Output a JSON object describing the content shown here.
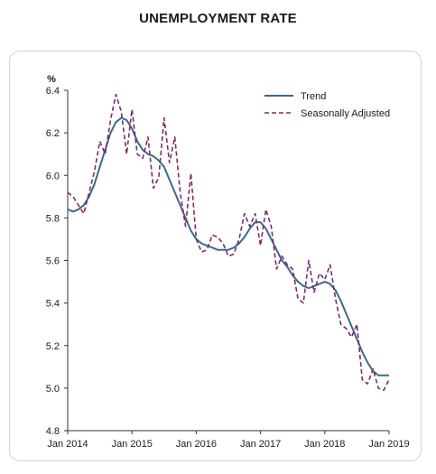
{
  "chart_data": {
    "type": "line",
    "title": "UNEMPLOYMENT RATE",
    "ylabel": "%",
    "xlabel": "",
    "ylim": [
      4.8,
      6.4
    ],
    "yticks": [
      "4.8",
      "5.0",
      "5.2",
      "5.4",
      "5.6",
      "5.8",
      "6.0",
      "6.2",
      "6.4"
    ],
    "xlim": [
      "2014-01",
      "2019-01"
    ],
    "xticks": [
      "Jan 2014",
      "Jan 2015",
      "Jan 2016",
      "Jan 2017",
      "Jan 2018",
      "Jan 2019"
    ],
    "grid": false,
    "legend": "top-right",
    "series": [
      {
        "name": "Trend",
        "color": "#3b6a8c",
        "style": "solid",
        "points": [
          [
            "2014-01",
            5.84
          ],
          [
            "2014-02",
            5.83
          ],
          [
            "2014-03",
            5.84
          ],
          [
            "2014-04",
            5.86
          ],
          [
            "2014-05",
            5.9
          ],
          [
            "2014-06",
            5.96
          ],
          [
            "2014-07",
            6.04
          ],
          [
            "2014-08",
            6.12
          ],
          [
            "2014-09",
            6.2
          ],
          [
            "2014-10",
            6.25
          ],
          [
            "2014-11",
            6.27
          ],
          [
            "2014-12",
            6.26
          ],
          [
            "2015-01",
            6.22
          ],
          [
            "2015-02",
            6.16
          ],
          [
            "2015-03",
            6.12
          ],
          [
            "2015-04",
            6.1
          ],
          [
            "2015-05",
            6.09
          ],
          [
            "2015-06",
            6.07
          ],
          [
            "2015-07",
            6.04
          ],
          [
            "2015-08",
            5.98
          ],
          [
            "2015-09",
            5.92
          ],
          [
            "2015-10",
            5.86
          ],
          [
            "2015-11",
            5.8
          ],
          [
            "2015-12",
            5.74
          ],
          [
            "2016-01",
            5.7
          ],
          [
            "2016-02",
            5.68
          ],
          [
            "2016-03",
            5.67
          ],
          [
            "2016-04",
            5.66
          ],
          [
            "2016-05",
            5.65
          ],
          [
            "2016-06",
            5.65
          ],
          [
            "2016-07",
            5.65
          ],
          [
            "2016-08",
            5.66
          ],
          [
            "2016-09",
            5.68
          ],
          [
            "2016-10",
            5.71
          ],
          [
            "2016-11",
            5.75
          ],
          [
            "2016-12",
            5.78
          ],
          [
            "2017-01",
            5.78
          ],
          [
            "2017-02",
            5.75
          ],
          [
            "2017-03",
            5.7
          ],
          [
            "2017-04",
            5.65
          ],
          [
            "2017-05",
            5.6
          ],
          [
            "2017-06",
            5.57
          ],
          [
            "2017-07",
            5.53
          ],
          [
            "2017-08",
            5.5
          ],
          [
            "2017-09",
            5.48
          ],
          [
            "2017-10",
            5.47
          ],
          [
            "2017-11",
            5.48
          ],
          [
            "2017-12",
            5.49
          ],
          [
            "2018-01",
            5.5
          ],
          [
            "2018-02",
            5.49
          ],
          [
            "2018-03",
            5.46
          ],
          [
            "2018-04",
            5.41
          ],
          [
            "2018-05",
            5.35
          ],
          [
            "2018-06",
            5.29
          ],
          [
            "2018-07",
            5.23
          ],
          [
            "2018-08",
            5.17
          ],
          [
            "2018-09",
            5.12
          ],
          [
            "2018-10",
            5.08
          ],
          [
            "2018-11",
            5.06
          ],
          [
            "2018-12",
            5.06
          ],
          [
            "2019-01",
            5.06
          ]
        ]
      },
      {
        "name": "Seasonally Adjusted",
        "color": "#7d2b6b",
        "style": "dashed",
        "points": [
          [
            "2014-01",
            5.92
          ],
          [
            "2014-02",
            5.9
          ],
          [
            "2014-03",
            5.86
          ],
          [
            "2014-04",
            5.82
          ],
          [
            "2014-05",
            5.92
          ],
          [
            "2014-06",
            6.02
          ],
          [
            "2014-07",
            6.16
          ],
          [
            "2014-08",
            6.1
          ],
          [
            "2014-09",
            6.26
          ],
          [
            "2014-10",
            6.38
          ],
          [
            "2014-11",
            6.3
          ],
          [
            "2014-12",
            6.1
          ],
          [
            "2015-01",
            6.31
          ],
          [
            "2015-02",
            6.1
          ],
          [
            "2015-03",
            6.08
          ],
          [
            "2015-04",
            6.18
          ],
          [
            "2015-05",
            5.94
          ],
          [
            "2015-06",
            5.99
          ],
          [
            "2015-07",
            6.27
          ],
          [
            "2015-08",
            6.06
          ],
          [
            "2015-09",
            6.18
          ],
          [
            "2015-10",
            5.92
          ],
          [
            "2015-11",
            5.76
          ],
          [
            "2015-12",
            6.01
          ],
          [
            "2016-01",
            5.7
          ],
          [
            "2016-02",
            5.64
          ],
          [
            "2016-03",
            5.65
          ],
          [
            "2016-04",
            5.72
          ],
          [
            "2016-05",
            5.71
          ],
          [
            "2016-06",
            5.68
          ],
          [
            "2016-07",
            5.62
          ],
          [
            "2016-08",
            5.63
          ],
          [
            "2016-09",
            5.7
          ],
          [
            "2016-10",
            5.82
          ],
          [
            "2016-11",
            5.76
          ],
          [
            "2016-12",
            5.82
          ],
          [
            "2017-01",
            5.67
          ],
          [
            "2017-02",
            5.84
          ],
          [
            "2017-03",
            5.76
          ],
          [
            "2017-04",
            5.56
          ],
          [
            "2017-05",
            5.62
          ],
          [
            "2017-06",
            5.58
          ],
          [
            "2017-07",
            5.56
          ],
          [
            "2017-08",
            5.42
          ],
          [
            "2017-09",
            5.4
          ],
          [
            "2017-10",
            5.6
          ],
          [
            "2017-11",
            5.45
          ],
          [
            "2017-12",
            5.54
          ],
          [
            "2018-01",
            5.51
          ],
          [
            "2018-02",
            5.58
          ],
          [
            "2018-03",
            5.42
          ],
          [
            "2018-04",
            5.3
          ],
          [
            "2018-05",
            5.28
          ],
          [
            "2018-06",
            5.24
          ],
          [
            "2018-07",
            5.3
          ],
          [
            "2018-08",
            5.04
          ],
          [
            "2018-09",
            5.02
          ],
          [
            "2018-10",
            5.09
          ],
          [
            "2018-11",
            5.0
          ],
          [
            "2018-12",
            4.99
          ],
          [
            "2019-01",
            5.04
          ]
        ]
      }
    ]
  }
}
